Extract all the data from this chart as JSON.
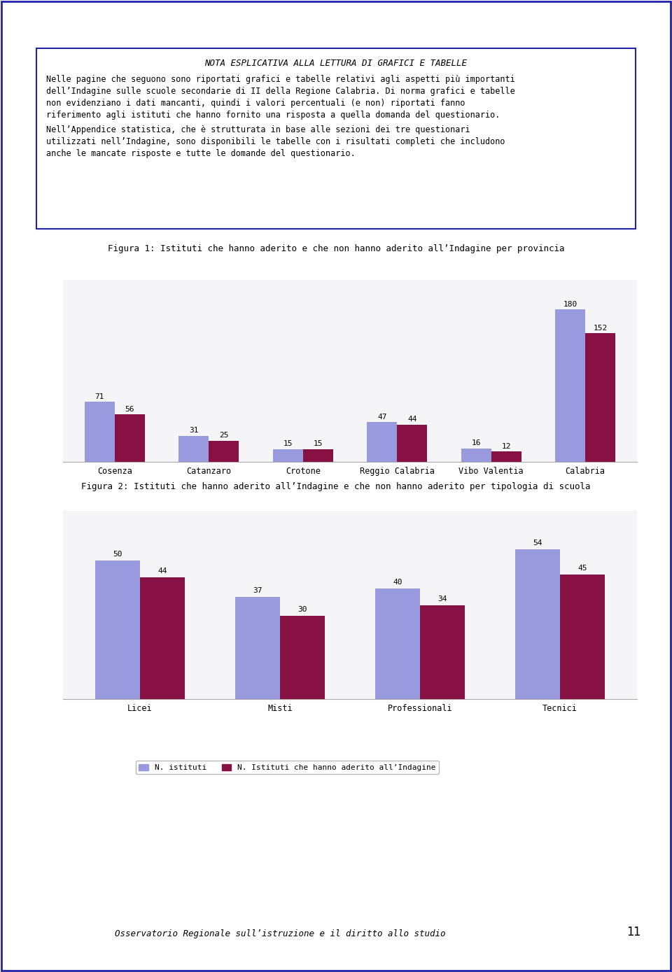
{
  "page_bg": "#ffffff",
  "border_color": "#2222aa",
  "nota_title": "NOTA ESPLICATIVA ALLA LETTURA DI GRAFICI E TABELLE",
  "nota_para1": "Nelle pagine che seguono sono riportati grafici e tabelle relativi agli aspetti più importanti dell’Indagine sulle scuole secondarie di II della Regione Calabria. Di norma grafici e tabelle non evidenziano i dati mancanti, quindi i valori percentuali (e non) riportati fanno riferimento agli istituti che hanno fornito una risposta a quella domanda del questionario.",
  "nota_para2": "Nell’Appendice statistica, che è strutturata in base alle sezioni dei tre questionari utilizzati nell’Indagine, sono disponibili le tabelle con i risultati completi che includono anche le mancate risposte e tutte le domande del questionario.",
  "fig1_title": "Figura 1: Istituti che hanno aderito e che non hanno aderito all’Indagine per provincia",
  "fig1_categories": [
    "Cosenza",
    "Catanzaro",
    "Crotone",
    "Reggio Calabria",
    "Vibo Valentia",
    "Calabria"
  ],
  "fig1_values1": [
    71,
    31,
    15,
    47,
    16,
    180
  ],
  "fig1_values2": [
    56,
    25,
    15,
    44,
    12,
    152
  ],
  "fig1_legend1": "N° Istituti",
  "fig1_legend2": "N° Istituti che hanno aderito all’indagine",
  "fig2_title": "Figura 2: Istituti che hanno aderito all’Indagine e che non hanno aderito per tipologia di scuola",
  "fig2_categories": [
    "Licei",
    "Misti",
    "Professionali",
    "Tecnici"
  ],
  "fig2_values1": [
    50,
    37,
    40,
    54
  ],
  "fig2_values2": [
    44,
    30,
    34,
    45
  ],
  "fig2_legend1": "N. istituti",
  "fig2_legend2": "N. Istituti che hanno aderito all’Indagine",
  "bar_color1": "#9999dd",
  "bar_color2": "#881144",
  "footer_text": "Osservatorio Regionale sull’istruzione e il diritto allo studio",
  "footer_page": "11"
}
